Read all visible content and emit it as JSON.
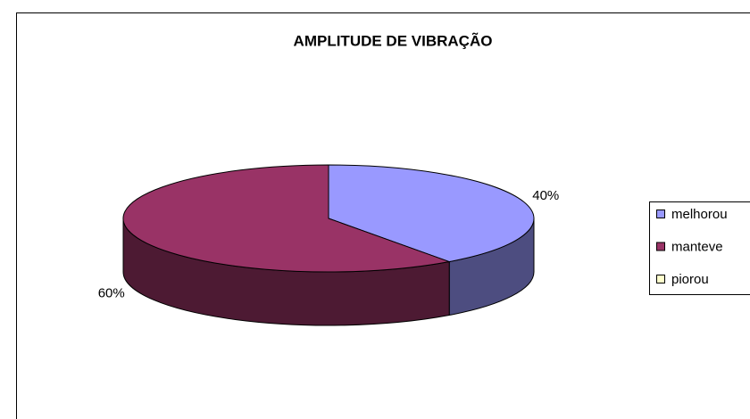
{
  "chart_data": {
    "type": "pie3d",
    "title": "AMPLITUDE DE VIBRAÇÃO",
    "categories": [
      "melhorou",
      "manteve",
      "piorou"
    ],
    "values": [
      40,
      60,
      0
    ],
    "value_labels": [
      "40%",
      "60%",
      null
    ],
    "colors": [
      "#9999ff",
      "#993366",
      "#ffffcc"
    ],
    "legend": "right"
  }
}
